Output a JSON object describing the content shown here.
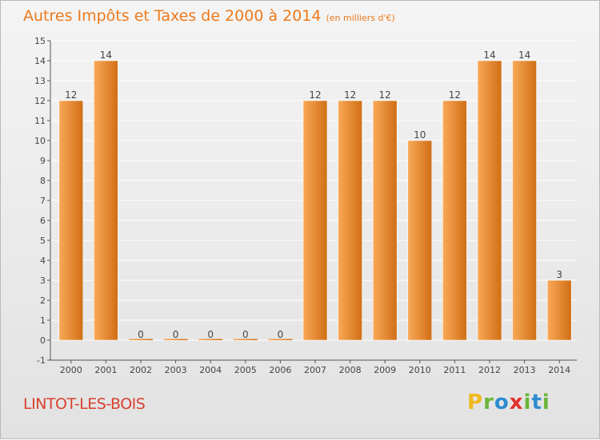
{
  "title": "Autres Impôts et Taxes de 2000 à 2014",
  "subtitle": "(en milliers d'€)",
  "commune": "LINTOT-LES-BOIS",
  "brand": {
    "letters": [
      "P",
      "r",
      "o",
      "x",
      "i",
      "t",
      "i"
    ],
    "colors": [
      "#f0b81e",
      "#6bb53a",
      "#2d8ccf",
      "#e2302a",
      "#6bb53a",
      "#2d8ccf",
      "#6bb53a"
    ]
  },
  "colors": {
    "bar_light": "#f9a958",
    "bar_dark": "#d06e14",
    "grid": "#ffffff",
    "axis": "#555555",
    "text": "#444444"
  },
  "chart_data": {
    "type": "bar",
    "title": "Autres Impôts et Taxes de 2000 à 2014",
    "subtitle": "(en milliers d'€)",
    "categories": [
      "2000",
      "2001",
      "2002",
      "2003",
      "2004",
      "2005",
      "2006",
      "2007",
      "2008",
      "2009",
      "2010",
      "2011",
      "2012",
      "2013",
      "2014"
    ],
    "values": [
      12,
      14,
      0,
      0,
      0,
      0,
      0,
      12,
      12,
      12,
      10,
      12,
      14,
      14,
      3
    ],
    "data_labels": [
      "12",
      "14",
      "0",
      "0",
      "0",
      "0",
      "0",
      "12",
      "12",
      "12",
      "10",
      "12",
      "14",
      "14",
      "3"
    ],
    "y_ticks": [
      "-1",
      "0",
      "1",
      "2",
      "3",
      "4",
      "5",
      "6",
      "7",
      "8",
      "9",
      "10",
      "11",
      "12",
      "13",
      "14",
      "15"
    ],
    "ylim": [
      -1,
      15
    ],
    "grid": true
  }
}
